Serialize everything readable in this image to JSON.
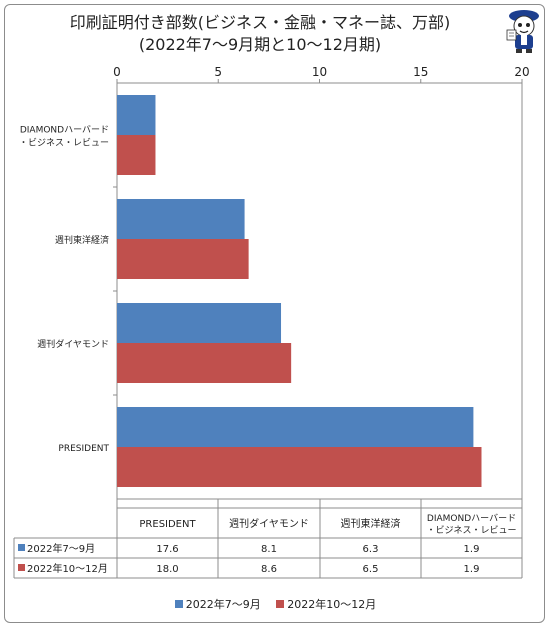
{
  "title": {
    "line1": "印刷証明付き部数(ビジネス・金融・マネー誌、万部)",
    "line2": "(2022年7～9月期と10～12月期)"
  },
  "colors": {
    "series1": "#4f81bd",
    "series2": "#c0504d"
  },
  "chart_data": {
    "type": "bar",
    "orientation": "horizontal",
    "categories": [
      "DIAMONDハーバード・ビジネス・レビュー",
      "週刊東洋経済",
      "週刊ダイヤモンド",
      "PRESIDENT"
    ],
    "category_labels": [
      [
        "DIAMONDハーバード",
        "・ビジネス・レビュー"
      ],
      [
        "週刊東洋経済"
      ],
      [
        "週刊ダイヤモンド"
      ],
      [
        "PRESIDENT"
      ]
    ],
    "series": [
      {
        "name": "2022年7～9月",
        "values": [
          1.9,
          6.3,
          8.1,
          17.6
        ],
        "color": "#4f81bd"
      },
      {
        "name": "2022年10～12月",
        "values": [
          1.9,
          6.5,
          8.6,
          18.0
        ],
        "color": "#c0504d"
      }
    ],
    "xlim": [
      0,
      20
    ],
    "xticks": [
      0,
      5,
      10,
      15,
      20
    ],
    "axis_position": "top",
    "grid": false,
    "legend": "bottom"
  },
  "data_table": {
    "headers": [
      "PRESIDENT",
      "週刊ダイヤモンド",
      "週刊東洋経済",
      [
        "DIAMONDハーバード",
        "・ビジネス・レビュー"
      ]
    ],
    "rows": [
      {
        "label": "2022年7～9月",
        "color": "#4f81bd",
        "values": [
          "17.6",
          "8.1",
          "6.3",
          "1.9"
        ]
      },
      {
        "label": "2022年10～12月",
        "color": "#c0504d",
        "values": [
          "18.0",
          "8.6",
          "6.5",
          "1.9"
        ]
      }
    ]
  },
  "legend": [
    {
      "label": "2022年7～9月",
      "color": "#4f81bd"
    },
    {
      "label": "2022年10～12月",
      "color": "#c0504d"
    }
  ],
  "mascot": {
    "icon": "mascot-character-icon"
  }
}
